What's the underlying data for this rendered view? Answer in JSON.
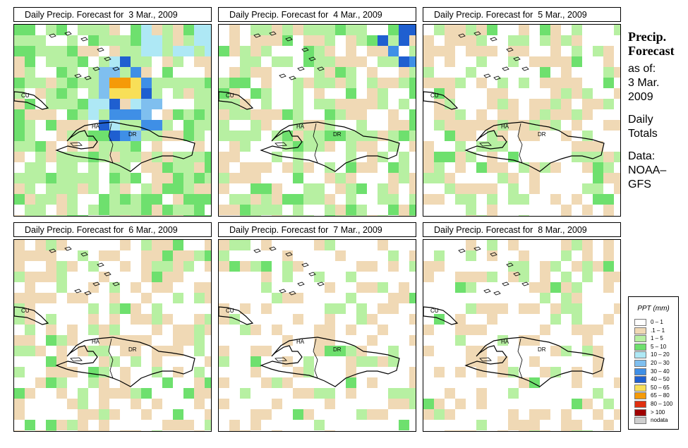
{
  "panels": [
    {
      "title": "Daily Precip. Forecast for  3 Mar., 2009",
      "intensity": 3
    },
    {
      "title": "Daily Precip. Forecast for  4 Mar., 2009",
      "intensity": 2
    },
    {
      "title": "Daily Precip. Forecast for  5 Mar., 2009",
      "intensity": 1
    },
    {
      "title": "Daily Precip. Forecast for  6 Mar., 2009",
      "intensity": 1
    },
    {
      "title": "Daily Precip. Forecast for  7 Mar., 2009",
      "intensity": 0
    },
    {
      "title": "Daily Precip. Forecast for  8 Mar., 2009",
      "intensity": 0
    }
  ],
  "map_labels": {
    "cuba": "CU",
    "haiti": "HA",
    "dominican_republic": "DR"
  },
  "sidebar": {
    "title_line1": "Precip.",
    "title_line2": "Forecast",
    "asof_label": "as of:",
    "asof_line1": "3 Mar.",
    "asof_line2": "2009",
    "type_line1": "Daily",
    "type_line2": "Totals",
    "data_line1": "Data:",
    "data_line2": "NOAA–",
    "data_line3": "GFS"
  },
  "legend": {
    "title": "PPT (mm)",
    "items": [
      {
        "label": "0 – 1",
        "color": "#ffffff"
      },
      {
        "label": ".1 – 1",
        "color": "#f0d9b5"
      },
      {
        "label": "1 – 5",
        "color": "#b7f0a2"
      },
      {
        "label": "5 – 10",
        "color": "#6ee06e"
      },
      {
        "label": "10 – 20",
        "color": "#aee8f5"
      },
      {
        "label": "20 – 30",
        "color": "#7fbfef"
      },
      {
        "label": "30 – 40",
        "color": "#3f8fe6"
      },
      {
        "label": "40 – 50",
        "color": "#1f5fd0"
      },
      {
        "label": "50 – 65",
        "color": "#f8df58"
      },
      {
        "label": "65 – 80",
        "color": "#f59a08"
      },
      {
        "label": "80 – 100",
        "color": "#e03010"
      },
      {
        "label": "> 100",
        "color": "#a00000"
      },
      {
        "label": "nodata",
        "color": "#cfcfcf"
      }
    ]
  }
}
